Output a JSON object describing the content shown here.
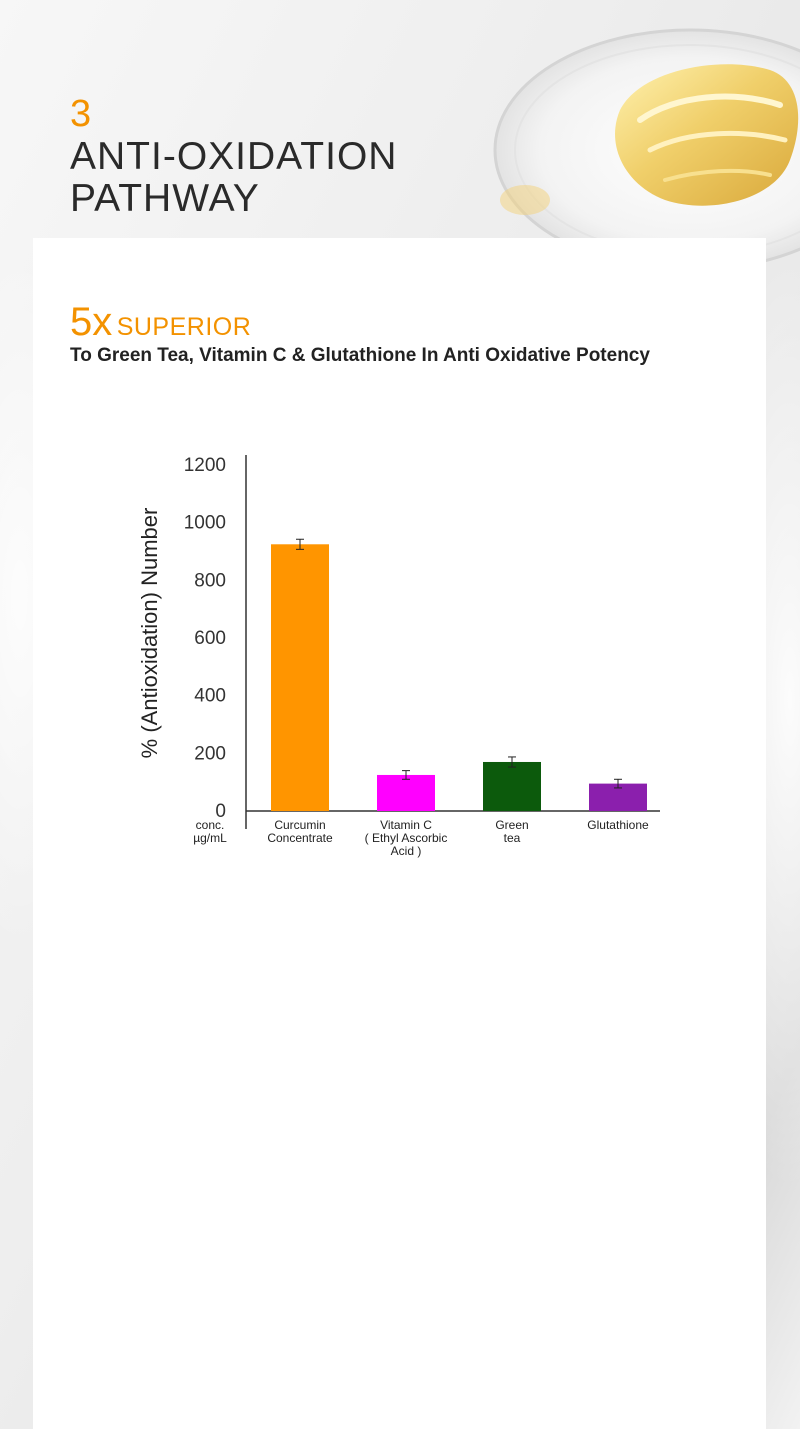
{
  "header": {
    "number": "3",
    "title": "ANTI-OXIDATION PATHWAY"
  },
  "headline": {
    "multiplier": "5x",
    "word": "SUPERIOR"
  },
  "subtitle": "To Green Tea, Vitamin C & Glutathione In Anti Oxidative Potency",
  "colors": {
    "accent": "#f39200",
    "title": "#2a2a2a"
  },
  "chart_data": {
    "type": "bar",
    "ylabel": "%  (Antioxidation) Number",
    "x_caption": [
      "conc.",
      "µg/mL"
    ],
    "ylim": [
      0,
      1200
    ],
    "yticks": [
      0,
      200,
      400,
      600,
      800,
      1000,
      1200
    ],
    "categories": [
      {
        "label_lines": [
          "Curcumin",
          "Concentrate"
        ],
        "value": 925,
        "error": 35,
        "color": "#ff9500"
      },
      {
        "label_lines": [
          "Vitamin C",
          "( Ethyl Ascorbic",
          "Acid )"
        ],
        "value": 125,
        "error": 30,
        "color": "#ff00ff"
      },
      {
        "label_lines": [
          "Green",
          "tea"
        ],
        "value": 170,
        "error": 35,
        "color": "#0c5a0c"
      },
      {
        "label_lines": [
          "Glutathione"
        ],
        "value": 95,
        "error": 30,
        "color": "#8b1fad"
      }
    ],
    "grid": false,
    "legend": "none"
  }
}
